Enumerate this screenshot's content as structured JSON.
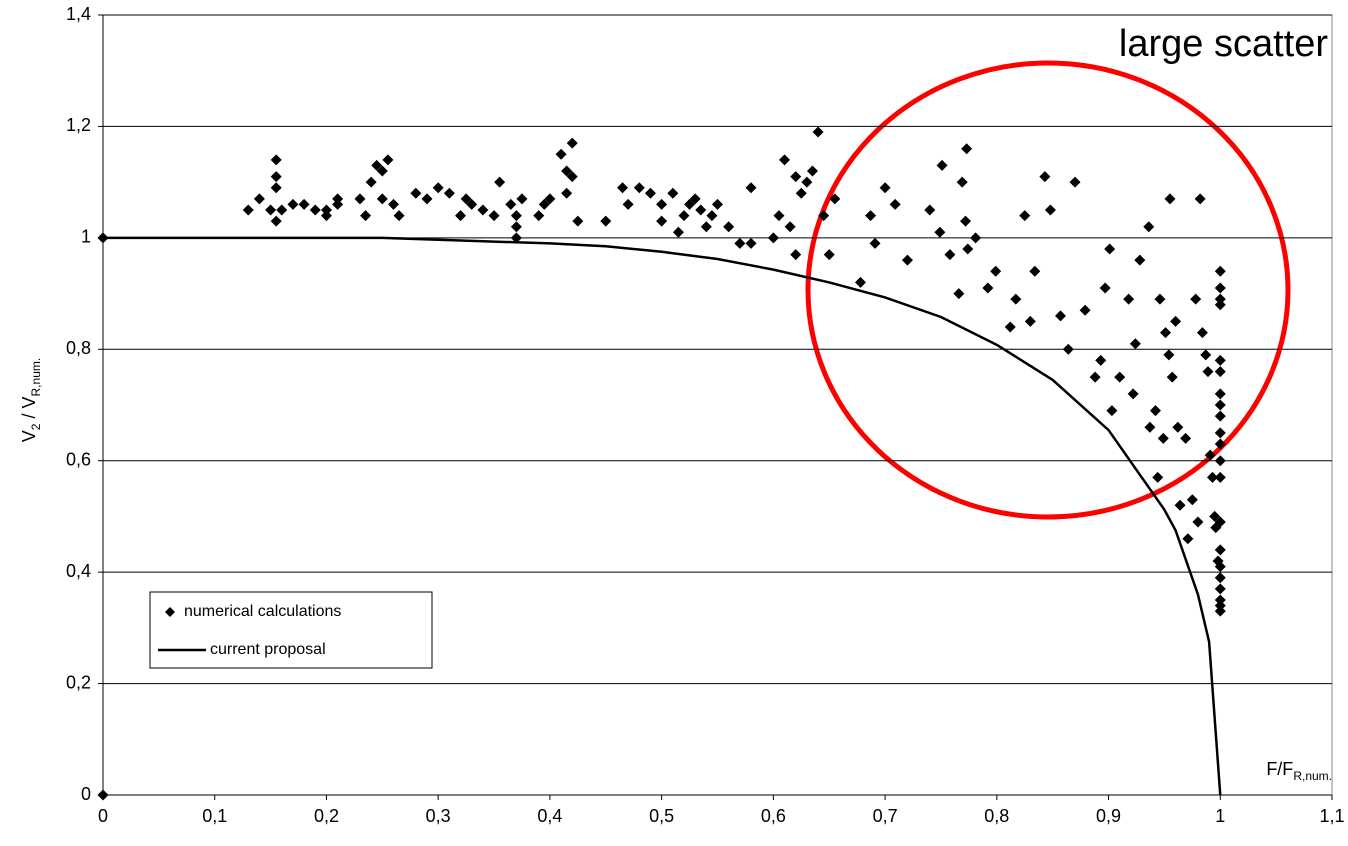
{
  "chart_data": {
    "type": "scatter",
    "annotation": "large scatter",
    "annotation_color": "#ff0000",
    "xlabel_parts": [
      {
        "text": "F/F",
        "sub": false
      },
      {
        "text": "R,num.",
        "sub": true
      }
    ],
    "ylabel_parts": [
      {
        "text": "V",
        "sub": false
      },
      {
        "text": "2",
        "sub": true
      },
      {
        "text": " / V",
        "sub": false
      },
      {
        "text": "R,num.",
        "sub": true
      }
    ],
    "xlim": [
      0,
      1.1
    ],
    "ylim": [
      0,
      1.4
    ],
    "xticks": [
      0,
      {
        "value": 0.1,
        "label": "0,1"
      },
      {
        "value": 0.2,
        "label": "0,2"
      },
      {
        "value": 0.3,
        "label": "0,3"
      },
      {
        "value": 0.4,
        "label": "0,4"
      },
      {
        "value": 0.5,
        "label": "0,5"
      },
      {
        "value": 0.6,
        "label": "0,6"
      },
      {
        "value": 0.7,
        "label": "0,7"
      },
      {
        "value": 0.8,
        "label": "0,8"
      },
      {
        "value": 0.9,
        "label": "0,9"
      },
      1,
      {
        "value": 1.1,
        "label": "1,1"
      }
    ],
    "yticks": [
      0,
      {
        "value": 0.2,
        "label": "0,2"
      },
      {
        "value": 0.4,
        "label": "0,4"
      },
      {
        "value": 0.6,
        "label": "0,6"
      },
      {
        "value": 0.8,
        "label": "0,8"
      },
      1,
      {
        "value": 1.2,
        "label": "1,2"
      },
      {
        "value": 1.4,
        "label": "1,4"
      }
    ],
    "grid": true,
    "legend": "lower left",
    "series": [
      {
        "name": "numerical calculations",
        "color": "#000000",
        "marker": "diamond",
        "x": [
          0,
          0,
          0.13,
          0.14,
          0.15,
          0.155,
          0.155,
          0.155,
          0.155,
          0.16,
          0.17,
          0.18,
          0.19,
          0.2,
          0.2,
          0.21,
          0.21,
          0.23,
          0.235,
          0.24,
          0.245,
          0.25,
          0.25,
          0.255,
          0.26,
          0.265,
          0.28,
          0.29,
          0.3,
          0.31,
          0.32,
          0.325,
          0.33,
          0.34,
          0.35,
          0.355,
          0.365,
          0.37,
          0.37,
          0.37,
          0.375,
          0.39,
          0.395,
          0.4,
          0.41,
          0.415,
          0.415,
          0.42,
          0.42,
          0.425,
          0.45,
          0.465,
          0.47,
          0.48,
          0.49,
          0.5,
          0.5,
          0.51,
          0.515,
          0.52,
          0.525,
          0.53,
          0.535,
          0.54,
          0.545,
          0.55,
          0.56,
          0.57,
          0.58,
          0.58,
          0.6,
          0.605,
          0.61,
          0.615,
          0.62,
          0.62,
          0.625,
          0.63,
          0.635,
          0.64,
          0.645,
          0.65,
          0.655,
          0.678,
          0.687,
          0.691,
          0.7,
          0.709,
          0.72,
          0.74,
          0.749,
          0.751,
          0.758,
          0.766,
          0.769,
          0.772,
          0.774,
          0.773,
          0.781,
          0.792,
          0.799,
          0.812,
          0.817,
          0.825,
          0.83,
          0.834,
          0.843,
          0.848,
          0.857,
          0.864,
          0.87,
          0.879,
          0.888,
          0.893,
          0.897,
          0.901,
          0.903,
          0.91,
          0.918,
          0.922,
          0.924,
          0.928,
          0.936,
          0.937,
          0.942,
          0.944,
          0.946,
          0.949,
          0.951,
          0.954,
          0.955,
          0.957,
          0.96,
          0.962,
          0.964,
          0.969,
          0.971,
          0.975,
          0.978,
          0.98,
          0.982,
          0.984,
          0.987,
          0.989,
          0.991,
          0.993,
          0.995,
          0.996,
          0.998,
          1,
          1,
          1,
          1,
          1,
          1,
          1,
          1,
          1,
          1,
          1,
          1,
          1,
          1,
          1,
          1,
          1,
          1,
          1,
          1,
          1
        ],
        "values": [
          1,
          0,
          1.05,
          1.07,
          1.05,
          1.14,
          1.11,
          1.09,
          1.03,
          1.05,
          1.06,
          1.06,
          1.05,
          1.04,
          1.05,
          1.06,
          1.07,
          1.07,
          1.04,
          1.1,
          1.13,
          1.07,
          1.12,
          1.14,
          1.06,
          1.04,
          1.08,
          1.07,
          1.09,
          1.08,
          1.04,
          1.07,
          1.06,
          1.05,
          1.04,
          1.1,
          1.06,
          1.04,
          1.02,
          1.0,
          1.07,
          1.04,
          1.06,
          1.07,
          1.15,
          1.12,
          1.08,
          1.17,
          1.11,
          1.03,
          1.03,
          1.09,
          1.06,
          1.09,
          1.08,
          1.06,
          1.03,
          1.08,
          1.01,
          1.04,
          1.06,
          1.07,
          1.05,
          1.02,
          1.04,
          1.06,
          1.02,
          0.99,
          0.99,
          1.09,
          1.0,
          1.04,
          1.14,
          1.02,
          0.97,
          1.11,
          1.08,
          1.1,
          1.12,
          1.19,
          1.04,
          0.97,
          1.07,
          0.92,
          1.04,
          0.99,
          1.09,
          1.06,
          0.96,
          1.05,
          1.01,
          1.13,
          0.97,
          0.9,
          1.1,
          1.03,
          0.98,
          1.16,
          1.0,
          0.91,
          0.94,
          0.84,
          0.89,
          1.04,
          0.85,
          0.94,
          1.11,
          1.05,
          0.86,
          0.8,
          1.1,
          0.87,
          0.75,
          0.78,
          0.91,
          0.98,
          0.69,
          0.75,
          0.89,
          0.72,
          0.81,
          0.96,
          1.02,
          0.66,
          0.69,
          0.57,
          0.89,
          0.64,
          0.83,
          0.79,
          1.07,
          0.75,
          0.85,
          0.66,
          0.52,
          0.64,
          0.46,
          0.53,
          0.89,
          0.49,
          1.07,
          0.83,
          0.79,
          0.76,
          0.61,
          0.57,
          0.5,
          0.48,
          0.42,
          0.94,
          0.91,
          0.89,
          0.88,
          0.78,
          0.76,
          0.72,
          0.7,
          0.68,
          0.65,
          0.63,
          0.6,
          0.57,
          0.49,
          0.44,
          0.41,
          0.39,
          0.37,
          0.35,
          0.34,
          0.33
        ]
      },
      {
        "name": "current proposal",
        "color": "#000000",
        "type": "line",
        "x": [
          0,
          0.25,
          0.4,
          0.45,
          0.5,
          0.55,
          0.6,
          0.65,
          0.7,
          0.75,
          0.8,
          0.85,
          0.9,
          0.95,
          0.96,
          0.98,
          0.99,
          1
        ],
        "values": [
          1,
          1,
          0.99,
          0.985,
          0.975,
          0.962,
          0.943,
          0.92,
          0.893,
          0.858,
          0.808,
          0.745,
          0.655,
          0.512,
          0.475,
          0.36,
          0.275,
          0
        ]
      }
    ]
  }
}
